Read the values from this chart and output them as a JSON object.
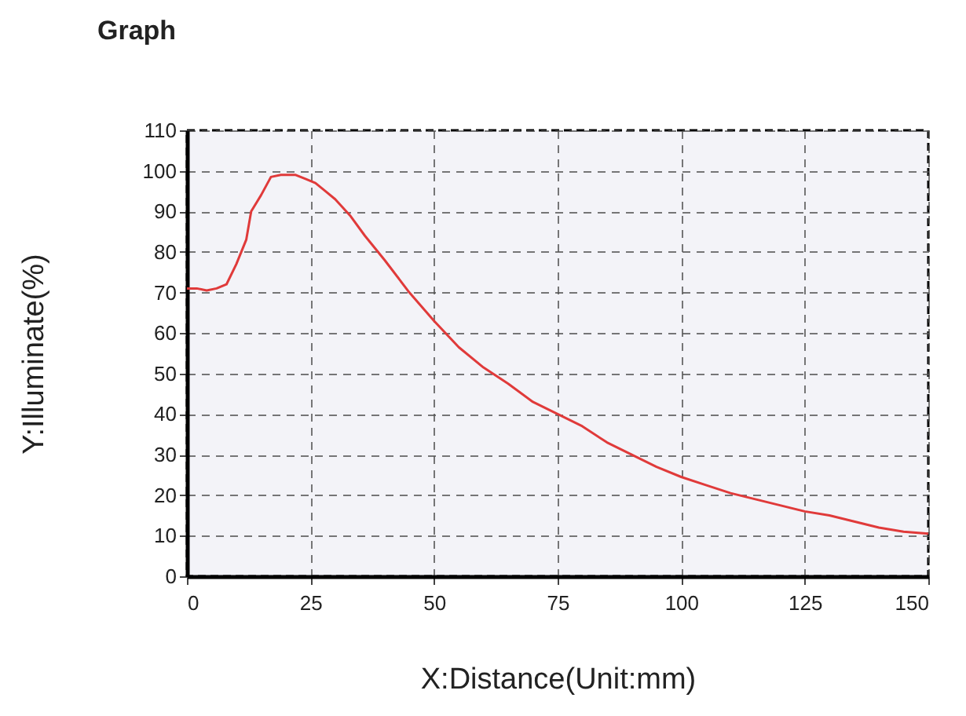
{
  "chart_data": {
    "type": "line",
    "title": "Graph",
    "xlabel": "X:Distance(Unit:mm)",
    "ylabel": "Y:Illuminate(%)",
    "x": [
      0,
      2,
      4,
      6,
      8,
      10,
      12,
      13,
      15,
      17,
      19,
      22,
      24,
      26,
      28,
      30,
      33,
      36,
      40,
      45,
      50,
      55,
      60,
      65,
      70,
      75,
      80,
      85,
      90,
      95,
      100,
      105,
      110,
      115,
      120,
      125,
      130,
      135,
      140,
      145,
      150
    ],
    "series": [
      {
        "color": "#e03a3a",
        "values": [
          71,
          71,
          70.5,
          71,
          72,
          77,
          83,
          90,
          94,
          98.5,
          99,
          99,
          98,
          97,
          95,
          93,
          89,
          84,
          78,
          70,
          63,
          56.5,
          51.5,
          47.5,
          43,
          40,
          37,
          33,
          30,
          27,
          24.5,
          22.5,
          20.5,
          19,
          17.5,
          16,
          15,
          13.5,
          12,
          11,
          10.5
        ]
      }
    ],
    "xlim": [
      0,
      150
    ],
    "ylim": [
      0,
      110
    ],
    "xticks": [
      0,
      25,
      50,
      75,
      100,
      125,
      150
    ],
    "yticks": [
      0,
      10,
      20,
      30,
      40,
      50,
      60,
      70,
      80,
      90,
      100,
      110
    ],
    "grid": true
  }
}
